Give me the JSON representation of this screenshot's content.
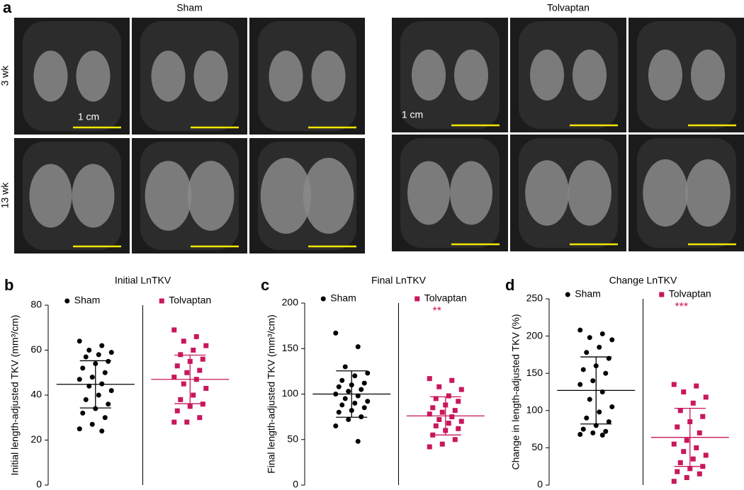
{
  "panel_a": {
    "label": "a",
    "row_labels": [
      "3 wk",
      "13 wk"
    ],
    "groups": [
      {
        "title": "Sham",
        "scale_label": "1 cm"
      },
      {
        "title": "Tolvaptan",
        "scale_label": "1 cm"
      }
    ]
  },
  "chart_data": [
    {
      "type": "dot",
      "label": "b",
      "title": "Initial LnTKV",
      "y_label": "Initial length-adjusted TKV (mm³/cm)",
      "ylim": [
        0,
        80
      ],
      "yticks": [
        0,
        20,
        40,
        60,
        80
      ],
      "series": [
        {
          "name": "Sham",
          "color": "#000000",
          "mean": 44.8,
          "sd": 10.5,
          "values": [
            64,
            62,
            60,
            59,
            58,
            57,
            55,
            54,
            52,
            50,
            48,
            47,
            45,
            44,
            42,
            40,
            38,
            36,
            34,
            32,
            30,
            27,
            25,
            24
          ]
        },
        {
          "name": "Tolvaptan",
          "color": "#c8175d",
          "mean": 47,
          "sd": 10.8,
          "values": [
            69,
            66,
            64,
            62,
            60,
            58,
            56,
            55,
            53,
            51,
            50,
            48,
            47,
            45,
            43,
            40,
            38,
            36,
            35,
            33,
            30,
            28,
            28
          ]
        }
      ]
    },
    {
      "type": "dot",
      "label": "c",
      "title": "Final LnTKV",
      "y_label": "Final length-adjusted TKV (mm³/cm)",
      "ylim": [
        0,
        200
      ],
      "yticks": [
        0,
        50,
        100,
        150,
        200
      ],
      "annotation": "**",
      "series": [
        {
          "name": "Sham",
          "color": "#000000",
          "mean": 100,
          "sd": 25.5,
          "values": [
            167,
            152,
            130,
            123,
            120,
            115,
            112,
            110,
            108,
            105,
            103,
            100,
            98,
            95,
            92,
            90,
            88,
            85,
            82,
            80,
            75,
            72,
            65,
            48
          ]
        },
        {
          "name": "Tolvaptan",
          "color": "#c8175d",
          "mean": 76,
          "sd": 21,
          "values": [
            117,
            115,
            108,
            105,
            98,
            95,
            92,
            88,
            85,
            82,
            80,
            78,
            75,
            72,
            70,
            68,
            65,
            62,
            60,
            55,
            50,
            45,
            42
          ]
        }
      ]
    },
    {
      "type": "dot",
      "label": "d",
      "title": "Change LnTKV",
      "y_label": "Change in length-adjusted TKV (%)",
      "ylim": [
        0,
        250
      ],
      "yticks": [
        0,
        50,
        100,
        150,
        200,
        250
      ],
      "annotation": "***",
      "series": [
        {
          "name": "Sham",
          "color": "#000000",
          "mean": 127,
          "sd": 45,
          "values": [
            208,
            203,
            198,
            195,
            185,
            178,
            170,
            160,
            155,
            150,
            140,
            135,
            125,
            115,
            105,
            98,
            90,
            85,
            80,
            75,
            72,
            70,
            68,
            67
          ]
        },
        {
          "name": "Tolvaptan",
          "color": "#c8175d",
          "mean": 64,
          "sd": 39,
          "values": [
            135,
            133,
            125,
            118,
            110,
            100,
            92,
            85,
            78,
            70,
            60,
            55,
            50,
            45,
            40,
            35,
            30,
            25,
            22,
            18,
            15,
            10,
            5
          ]
        }
      ]
    }
  ]
}
